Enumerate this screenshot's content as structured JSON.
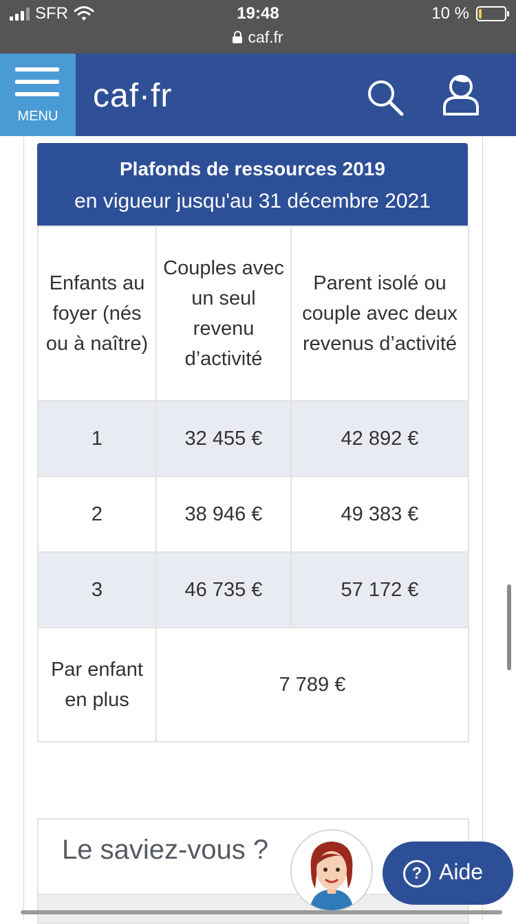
{
  "status_bar": {
    "carrier": "SFR",
    "time": "19:48",
    "battery_text": "10 %",
    "battery_level": 0.1,
    "battery_color": "#f2c94c"
  },
  "url_bar": {
    "domain": "caf.fr"
  },
  "header": {
    "menu_label": "MENU",
    "logo_text": "caf·fr",
    "icons": [
      "menu-icon",
      "search-icon",
      "user-icon"
    ],
    "colors": {
      "header_bg": "#2f4f97",
      "menu_bg": "#4a9ad4"
    }
  },
  "table": {
    "title": "Plafonds de ressources 2019",
    "subtitle": "en vigueur jusqu'au 31 décembre 2021",
    "columns": [
      "Enfants au foyer (nés ou à naître)",
      "Couples avec un seul revenu d’activité",
      "Parent isolé ou couple avec deux revenus d’activité"
    ],
    "rows": [
      {
        "children": "1",
        "single_income": "32 455 €",
        "two_incomes": "42 892 €"
      },
      {
        "children": "2",
        "single_income": "38 946 €",
        "two_incomes": "49 383 €"
      },
      {
        "children": "3",
        "single_income": "46 735 €",
        "two_incomes": "57 172 €"
      }
    ],
    "extra_row": {
      "label": "Par enfant en plus",
      "value": "7 789 €"
    },
    "colors": {
      "title_bg": "#2d4f97",
      "shaded_row": "#e9ebf2"
    }
  },
  "saviez_vous": {
    "title": "Le saviez-vous ?"
  },
  "help_widget": {
    "label": "Aide",
    "icon": "question-circle-icon",
    "avatar": "assistant-avatar"
  }
}
